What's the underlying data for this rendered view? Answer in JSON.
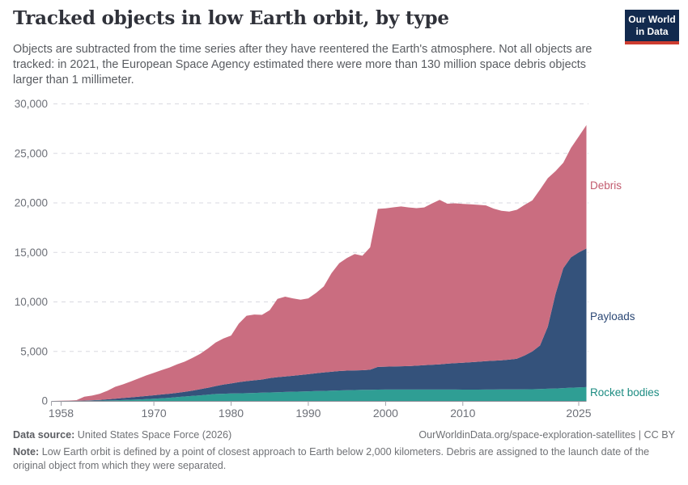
{
  "header": {
    "title": "Tracked objects in low Earth orbit, by type",
    "subtitle": "Objects are subtracted from the time series after they have reentered the Earth's atmosphere. Not all objects are tracked: in 2021, the European Space Agency estimated there were more than 130 million space debris objects larger than 1 millimeter.",
    "logo": {
      "line1": "Our World",
      "line2": "in Data",
      "bg_color": "#122a4e",
      "bar_color": "#cd3c30"
    }
  },
  "chart_data": {
    "type": "area",
    "stacked": true,
    "title": "Tracked objects in low Earth orbit, by type",
    "xlabel": "",
    "ylabel": "",
    "xlim": [
      1957,
      2026
    ],
    "ylim": [
      0,
      30000
    ],
    "grid": true,
    "legend_position": "right-labels",
    "xticks": [
      1958,
      1970,
      1980,
      1990,
      2000,
      2010,
      2025
    ],
    "yticks": [
      0,
      5000,
      10000,
      15000,
      20000,
      25000,
      30000
    ],
    "x": [
      1957,
      1958,
      1959,
      1960,
      1961,
      1962,
      1963,
      1964,
      1965,
      1966,
      1967,
      1968,
      1969,
      1970,
      1971,
      1972,
      1973,
      1974,
      1975,
      1976,
      1977,
      1978,
      1979,
      1980,
      1981,
      1982,
      1983,
      1984,
      1985,
      1986,
      1987,
      1988,
      1989,
      1990,
      1991,
      1992,
      1993,
      1994,
      1995,
      1996,
      1997,
      1998,
      1999,
      2000,
      2001,
      2002,
      2003,
      2004,
      2005,
      2006,
      2007,
      2008,
      2009,
      2010,
      2011,
      2012,
      2013,
      2014,
      2015,
      2016,
      2017,
      2018,
      2019,
      2020,
      2021,
      2022,
      2023,
      2024,
      2025,
      2026
    ],
    "series": [
      {
        "name": "Rocket bodies",
        "color": "#2f9e94",
        "label_color": "#1d8c82",
        "values": [
          0,
          1,
          3,
          6,
          12,
          20,
          32,
          48,
          68,
          92,
          120,
          150,
          185,
          225,
          270,
          320,
          380,
          445,
          505,
          560,
          635,
          700,
          730,
          755,
          770,
          785,
          805,
          830,
          855,
          880,
          905,
          930,
          950,
          975,
          995,
          1010,
          1035,
          1060,
          1080,
          1100,
          1115,
          1130,
          1145,
          1150,
          1152,
          1154,
          1154,
          1152,
          1150,
          1150,
          1152,
          1148,
          1150,
          1145,
          1142,
          1145,
          1150,
          1152,
          1158,
          1162,
          1168,
          1172,
          1180,
          1200,
          1230,
          1260,
          1300,
          1340,
          1370,
          1400
        ]
      },
      {
        "name": "Payloads",
        "color": "#34527b",
        "label_color": "#2c4875",
        "values": [
          0,
          3,
          7,
          12,
          28,
          50,
          78,
          112,
          157,
          198,
          240,
          280,
          315,
          345,
          380,
          410,
          440,
          475,
          535,
          620,
          695,
          800,
          920,
          1005,
          1130,
          1215,
          1275,
          1330,
          1445,
          1520,
          1565,
          1610,
          1670,
          1725,
          1795,
          1860,
          1915,
          1960,
          1980,
          1980,
          1985,
          2020,
          2295,
          2310,
          2328,
          2346,
          2366,
          2408,
          2470,
          2510,
          2548,
          2612,
          2670,
          2705,
          2768,
          2815,
          2870,
          2908,
          2942,
          3008,
          3092,
          3418,
          3820,
          4400,
          6270,
          9540,
          12100,
          13160,
          13630,
          14000
        ]
      },
      {
        "name": "Debris",
        "color": "#ca6d80",
        "label_color": "#c25b6e",
        "values": [
          1,
          11,
          30,
          62,
          390,
          470,
          620,
          870,
          1205,
          1380,
          1600,
          1840,
          2070,
          2260,
          2460,
          2630,
          2880,
          3050,
          3310,
          3570,
          3970,
          4400,
          4650,
          4840,
          5900,
          6600,
          6650,
          6530,
          6860,
          7910,
          8060,
          7820,
          7610,
          7660,
          8120,
          8690,
          9960,
          10890,
          11380,
          11750,
          11560,
          12360,
          15960,
          15990,
          16070,
          16140,
          16020,
          15910,
          15920,
          16280,
          16610,
          16160,
          16140,
          16050,
          15950,
          15840,
          15730,
          15360,
          15100,
          14950,
          15050,
          15210,
          15250,
          15750,
          15000,
          12400,
          10650,
          11050,
          11700,
          12450
        ]
      }
    ]
  },
  "footer": {
    "datasource_label": "Data source:",
    "datasource_value": "United States Space Force (2026)",
    "link": "OurWorldinData.org/space-exploration-satellites | CC BY",
    "note_label": "Note:",
    "note_text": "Low Earth orbit is defined by a point of closest approach to Earth below 2,000 kilometers. Debris are assigned to the launch date of the original object from which they were separated."
  }
}
